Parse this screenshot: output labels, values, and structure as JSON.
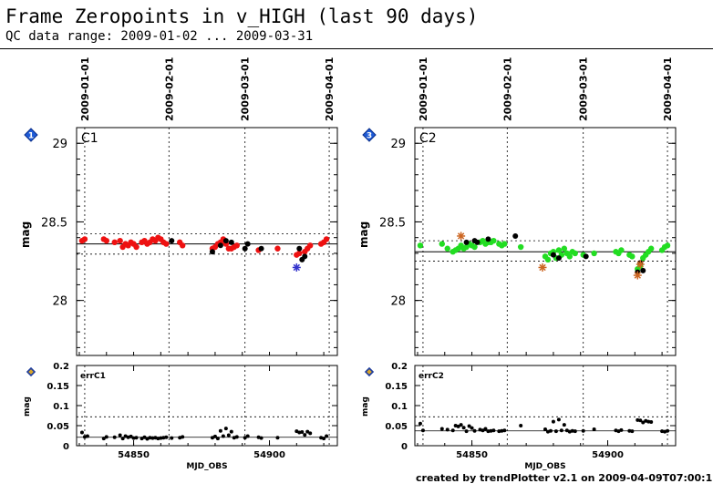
{
  "title": "Frame Zeropoints in v_HIGH (last 90 days)",
  "subtitle": "QC data range: 2009-01-02 ... 2009-03-31",
  "footer": "created by trendPlotter v2.1 on 2009-04-09T07:00:15",
  "colors": {
    "C1": "#ee1111",
    "C2": "#22dd22",
    "outlier_C1": "#3333cc",
    "outlier_C2": "#cc6622",
    "marker": "#1e5bd6",
    "marker_small": "#d9a62b"
  },
  "date_ticks": [
    {
      "label": "2009-01-01",
      "mjd": 54832
    },
    {
      "label": "2009-02-01",
      "mjd": 54863
    },
    {
      "label": "2009-03-01",
      "mjd": 54891
    },
    {
      "label": "2009-04-01",
      "mjd": 54922
    }
  ],
  "chart_data": [
    {
      "type": "scatter",
      "panel": "C1",
      "marker_label": "1",
      "ylabel": "mag",
      "xlim": [
        54829,
        54925
      ],
      "ylim": [
        27.65,
        29.1
      ],
      "yticks": [
        {
          "v": 28,
          "label": "28"
        },
        {
          "v": 28.5,
          "label": "28.5"
        },
        {
          "v": 29,
          "label": "29"
        }
      ],
      "median": 28.36,
      "band": [
        28.295,
        28.425
      ],
      "red": [
        [
          54831,
          28.38
        ],
        [
          54832,
          28.39
        ],
        [
          54839,
          28.39
        ],
        [
          54840,
          28.38
        ],
        [
          54843,
          28.37
        ],
        [
          54845,
          28.38
        ],
        [
          54846,
          28.34
        ],
        [
          54847,
          28.36
        ],
        [
          54848,
          28.35
        ],
        [
          54849,
          28.37
        ],
        [
          54850,
          28.36
        ],
        [
          54851,
          28.34
        ],
        [
          54853,
          28.37
        ],
        [
          54854,
          28.38
        ],
        [
          54855,
          28.36
        ],
        [
          54856,
          28.37
        ],
        [
          54857,
          28.39
        ],
        [
          54858,
          28.38
        ],
        [
          54859,
          28.4
        ],
        [
          54860,
          28.39
        ],
        [
          54861,
          28.37
        ],
        [
          54862,
          28.36
        ],
        [
          54867,
          28.37
        ],
        [
          54868,
          28.35
        ],
        [
          54879,
          28.33
        ],
        [
          54880,
          28.34
        ],
        [
          54881,
          28.36
        ],
        [
          54882,
          28.37
        ],
        [
          54883,
          28.39
        ],
        [
          54884,
          28.36
        ],
        [
          54885,
          28.33
        ],
        [
          54886,
          28.33
        ],
        [
          54887,
          28.34
        ],
        [
          54888,
          28.35
        ],
        [
          54896,
          28.32
        ],
        [
          54903,
          28.33
        ],
        [
          54910,
          28.29
        ],
        [
          54911,
          28.3
        ],
        [
          54913,
          28.31
        ],
        [
          54914,
          28.33
        ],
        [
          54915,
          28.35
        ],
        [
          54919,
          28.36
        ],
        [
          54920,
          28.37
        ],
        [
          54921,
          28.39
        ]
      ],
      "black": [
        [
          54864,
          28.38
        ],
        [
          54879,
          28.31
        ],
        [
          54882,
          28.35
        ],
        [
          54884,
          28.38
        ],
        [
          54886,
          28.37
        ],
        [
          54891,
          28.33
        ],
        [
          54892,
          28.36
        ],
        [
          54897,
          28.33
        ],
        [
          54911,
          28.33
        ],
        [
          54912,
          28.26
        ],
        [
          54913,
          28.28
        ]
      ],
      "outliers": [
        [
          54910,
          28.21
        ]
      ],
      "err": {
        "label": "errC1",
        "ylim": [
          0,
          0.2
        ],
        "yticks": [
          {
            "v": 0,
            "label": "0"
          },
          {
            "v": 0.05,
            "label": "0.05"
          },
          {
            "v": 0.1,
            "label": "0.1"
          },
          {
            "v": 0.15,
            "label": "0.15"
          },
          {
            "v": 0.2,
            "label": "0.2"
          }
        ],
        "median": 0.021,
        "upper": 0.072,
        "xticks": [
          {
            "v": 54850,
            "label": "54850"
          },
          {
            "v": 54900,
            "label": "54900"
          }
        ],
        "xlabel": "MJD_OBS",
        "points": [
          [
            54831,
            0.033
          ],
          [
            54832,
            0.022
          ],
          [
            54833,
            0.024
          ],
          [
            54839,
            0.018
          ],
          [
            54840,
            0.022
          ],
          [
            54843,
            0.021
          ],
          [
            54845,
            0.026
          ],
          [
            54846,
            0.018
          ],
          [
            54847,
            0.024
          ],
          [
            54848,
            0.021
          ],
          [
            54849,
            0.023
          ],
          [
            54850,
            0.019
          ],
          [
            54851,
            0.02
          ],
          [
            54853,
            0.018
          ],
          [
            54854,
            0.021
          ],
          [
            54855,
            0.017
          ],
          [
            54856,
            0.02
          ],
          [
            54857,
            0.019
          ],
          [
            54858,
            0.02
          ],
          [
            54859,
            0.018
          ],
          [
            54860,
            0.019
          ],
          [
            54861,
            0.02
          ],
          [
            54862,
            0.021
          ],
          [
            54864,
            0.019
          ],
          [
            54867,
            0.02
          ],
          [
            54868,
            0.022
          ],
          [
            54879,
            0.02
          ],
          [
            54880,
            0.023
          ],
          [
            54881,
            0.018
          ],
          [
            54882,
            0.037
          ],
          [
            54883,
            0.024
          ],
          [
            54884,
            0.043
          ],
          [
            54885,
            0.026
          ],
          [
            54886,
            0.035
          ],
          [
            54887,
            0.02
          ],
          [
            54888,
            0.022
          ],
          [
            54891,
            0.02
          ],
          [
            54892,
            0.024
          ],
          [
            54896,
            0.021
          ],
          [
            54897,
            0.019
          ],
          [
            54903,
            0.02
          ],
          [
            54910,
            0.036
          ],
          [
            54911,
            0.033
          ],
          [
            54912,
            0.034
          ],
          [
            54913,
            0.027
          ],
          [
            54914,
            0.035
          ],
          [
            54915,
            0.031
          ],
          [
            54919,
            0.02
          ],
          [
            54920,
            0.018
          ],
          [
            54921,
            0.024
          ]
        ]
      }
    },
    {
      "type": "scatter",
      "panel": "C2",
      "marker_label": "3",
      "ylabel": "mag",
      "xlim": [
        54829,
        54925
      ],
      "ylim": [
        27.65,
        29.1
      ],
      "yticks": [
        {
          "v": 28,
          "label": "28"
        },
        {
          "v": 28.5,
          "label": "28.5"
        },
        {
          "v": 29,
          "label": "29"
        }
      ],
      "median": 28.31,
      "band": [
        28.25,
        28.38
      ],
      "green": [
        [
          54831,
          28.35
        ],
        [
          54839,
          28.36
        ],
        [
          54841,
          28.33
        ],
        [
          54843,
          28.31
        ],
        [
          54844,
          28.32
        ],
        [
          54845,
          28.33
        ],
        [
          54846,
          28.35
        ],
        [
          54847,
          28.33
        ],
        [
          54848,
          28.34
        ],
        [
          54849,
          28.36
        ],
        [
          54850,
          28.35
        ],
        [
          54851,
          28.34
        ],
        [
          54853,
          28.37
        ],
        [
          54854,
          28.38
        ],
        [
          54855,
          28.36
        ],
        [
          54856,
          28.37
        ],
        [
          54857,
          28.37
        ],
        [
          54858,
          28.38
        ],
        [
          54860,
          28.36
        ],
        [
          54861,
          28.35
        ],
        [
          54862,
          28.36
        ],
        [
          54868,
          28.34
        ],
        [
          54877,
          28.28
        ],
        [
          54878,
          28.26
        ],
        [
          54879,
          28.3
        ],
        [
          54880,
          28.31
        ],
        [
          54881,
          28.27
        ],
        [
          54882,
          28.32
        ],
        [
          54883,
          28.29
        ],
        [
          54884,
          28.33
        ],
        [
          54885,
          28.3
        ],
        [
          54886,
          28.28
        ],
        [
          54887,
          28.31
        ],
        [
          54888,
          28.3
        ],
        [
          54891,
          28.29
        ],
        [
          54895,
          28.3
        ],
        [
          54903,
          28.31
        ],
        [
          54904,
          28.3
        ],
        [
          54905,
          28.32
        ],
        [
          54908,
          28.29
        ],
        [
          54909,
          28.28
        ],
        [
          54911,
          28.2
        ],
        [
          54912,
          28.22
        ],
        [
          54913,
          28.27
        ],
        [
          54914,
          28.29
        ],
        [
          54915,
          28.31
        ],
        [
          54916,
          28.33
        ],
        [
          54920,
          28.32
        ],
        [
          54921,
          28.34
        ],
        [
          54922,
          28.35
        ]
      ],
      "black": [
        [
          54848,
          28.37
        ],
        [
          54851,
          28.38
        ],
        [
          54852,
          28.37
        ],
        [
          54856,
          28.39
        ],
        [
          54866,
          28.41
        ],
        [
          54880,
          28.29
        ],
        [
          54882,
          28.27
        ],
        [
          54892,
          28.28
        ],
        [
          54911,
          28.18
        ],
        [
          54912,
          28.24
        ],
        [
          54913,
          28.19
        ]
      ],
      "outliers": [
        [
          54846,
          28.41
        ],
        [
          54876,
          28.21
        ],
        [
          54911,
          28.16
        ],
        [
          54912,
          28.23
        ]
      ],
      "err": {
        "label": "errC2",
        "ylim": [
          0,
          0.2
        ],
        "yticks": [
          {
            "v": 0,
            "label": "0"
          },
          {
            "v": 0.05,
            "label": "0.05"
          },
          {
            "v": 0.1,
            "label": "0.1"
          },
          {
            "v": 0.15,
            "label": "0.15"
          },
          {
            "v": 0.2,
            "label": "0.2"
          }
        ],
        "median": 0.037,
        "upper": 0.072,
        "xticks": [
          {
            "v": 54850,
            "label": "54850"
          },
          {
            "v": 54900,
            "label": "54900"
          }
        ],
        "xlabel": "MJD_OBS",
        "points": [
          [
            54831,
            0.055
          ],
          [
            54832,
            0.038
          ],
          [
            54839,
            0.042
          ],
          [
            54841,
            0.04
          ],
          [
            54843,
            0.038
          ],
          [
            54844,
            0.05
          ],
          [
            54845,
            0.048
          ],
          [
            54846,
            0.052
          ],
          [
            54847,
            0.045
          ],
          [
            54848,
            0.036
          ],
          [
            54849,
            0.049
          ],
          [
            54850,
            0.044
          ],
          [
            54851,
            0.037
          ],
          [
            54853,
            0.04
          ],
          [
            54854,
            0.038
          ],
          [
            54855,
            0.042
          ],
          [
            54856,
            0.036
          ],
          [
            54857,
            0.037
          ],
          [
            54858,
            0.038
          ],
          [
            54860,
            0.036
          ],
          [
            54861,
            0.037
          ],
          [
            54862,
            0.038
          ],
          [
            54868,
            0.05
          ],
          [
            54877,
            0.041
          ],
          [
            54878,
            0.035
          ],
          [
            54879,
            0.037
          ],
          [
            54880,
            0.06
          ],
          [
            54881,
            0.036
          ],
          [
            54882,
            0.065
          ],
          [
            54883,
            0.038
          ],
          [
            54884,
            0.052
          ],
          [
            54885,
            0.038
          ],
          [
            54886,
            0.035
          ],
          [
            54887,
            0.037
          ],
          [
            54888,
            0.036
          ],
          [
            54891,
            0.037
          ],
          [
            54895,
            0.041
          ],
          [
            54903,
            0.038
          ],
          [
            54904,
            0.036
          ],
          [
            54905,
            0.039
          ],
          [
            54908,
            0.037
          ],
          [
            54909,
            0.036
          ],
          [
            54911,
            0.064
          ],
          [
            54912,
            0.063
          ],
          [
            54913,
            0.058
          ],
          [
            54914,
            0.062
          ],
          [
            54915,
            0.06
          ],
          [
            54916,
            0.059
          ],
          [
            54920,
            0.036
          ],
          [
            54921,
            0.035
          ],
          [
            54922,
            0.037
          ]
        ]
      }
    }
  ]
}
